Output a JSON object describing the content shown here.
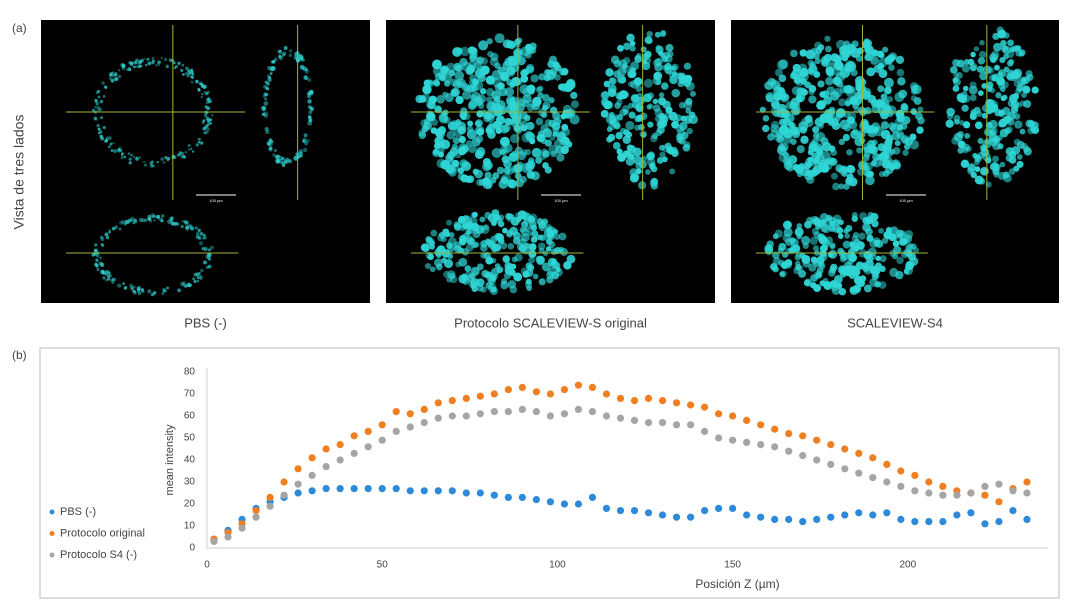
{
  "figure": {
    "panel_a_label": "(a)",
    "side_label": "Vista de tres lados",
    "panel_b_label": "(b)",
    "images": [
      {
        "caption": "PBS (-)",
        "scale_label": "100 µm"
      },
      {
        "caption": "Protocolo SCALEVIEW-S original",
        "scale_label": "100 µm"
      },
      {
        "caption": "SCALEVIEW-S4",
        "scale_label": "100 µm"
      }
    ]
  },
  "chart_data": {
    "type": "scatter",
    "x_label": "Posición Z (µm)",
    "y_label": "mean intensity",
    "x": [
      2,
      6,
      10,
      14,
      18,
      22,
      26,
      30,
      34,
      38,
      42,
      46,
      50,
      54,
      58,
      62,
      66,
      70,
      74,
      78,
      82,
      86,
      90,
      94,
      98,
      102,
      106,
      110,
      114,
      118,
      122,
      126,
      130,
      134,
      138,
      142,
      146,
      150,
      154,
      158,
      162,
      166,
      170,
      174,
      178,
      182,
      186,
      190,
      194,
      198,
      202,
      206,
      210,
      214,
      218,
      222,
      226,
      230,
      234
    ],
    "xlim": [
      0,
      240
    ],
    "xticks": [
      0,
      50,
      100,
      150,
      200
    ],
    "ylim": [
      0,
      80
    ],
    "yticks": [
      0,
      10,
      20,
      30,
      40,
      50,
      60,
      70,
      80
    ],
    "legend": "left",
    "series": [
      {
        "name": "PBS (-)",
        "color": "#2e8ad8",
        "values": [
          4,
          8,
          13,
          18,
          21,
          23,
          25,
          26,
          27,
          27,
          27,
          27,
          27,
          27,
          26,
          26,
          26,
          26,
          25,
          25,
          24,
          23,
          23,
          22,
          21,
          20,
          20,
          23,
          18,
          17,
          17,
          16,
          15,
          14,
          14,
          17,
          18,
          18,
          15,
          14,
          13,
          13,
          12,
          13,
          14,
          15,
          16,
          15,
          16,
          13,
          12,
          12,
          12,
          15,
          16,
          11,
          12,
          17,
          13
        ]
      },
      {
        "name": "Protocolo original",
        "color": "#f07f22",
        "values": [
          4,
          7,
          11,
          17,
          23,
          30,
          36,
          41,
          45,
          47,
          51,
          53,
          56,
          62,
          61,
          63,
          66,
          67,
          68,
          69,
          70,
          72,
          73,
          71,
          70,
          72,
          74,
          73,
          70,
          68,
          67,
          68,
          67,
          66,
          65,
          64,
          61,
          60,
          58,
          56,
          54,
          52,
          51,
          49,
          47,
          45,
          43,
          41,
          38,
          35,
          33,
          30,
          28,
          26,
          25,
          24,
          21,
          27,
          30
        ]
      },
      {
        "name": "Protocolo S4 (-)",
        "color": "#a5a5a5",
        "values": [
          3,
          5,
          9,
          14,
          19,
          24,
          29,
          33,
          37,
          40,
          43,
          46,
          49,
          53,
          55,
          57,
          59,
          60,
          60,
          61,
          62,
          62,
          63,
          62,
          60,
          61,
          63,
          62,
          60,
          59,
          58,
          57,
          57,
          56,
          56,
          53,
          50,
          49,
          48,
          47,
          46,
          44,
          42,
          40,
          38,
          36,
          34,
          32,
          30,
          28,
          26,
          25,
          24,
          24,
          25,
          28,
          29,
          26,
          25
        ]
      }
    ]
  }
}
